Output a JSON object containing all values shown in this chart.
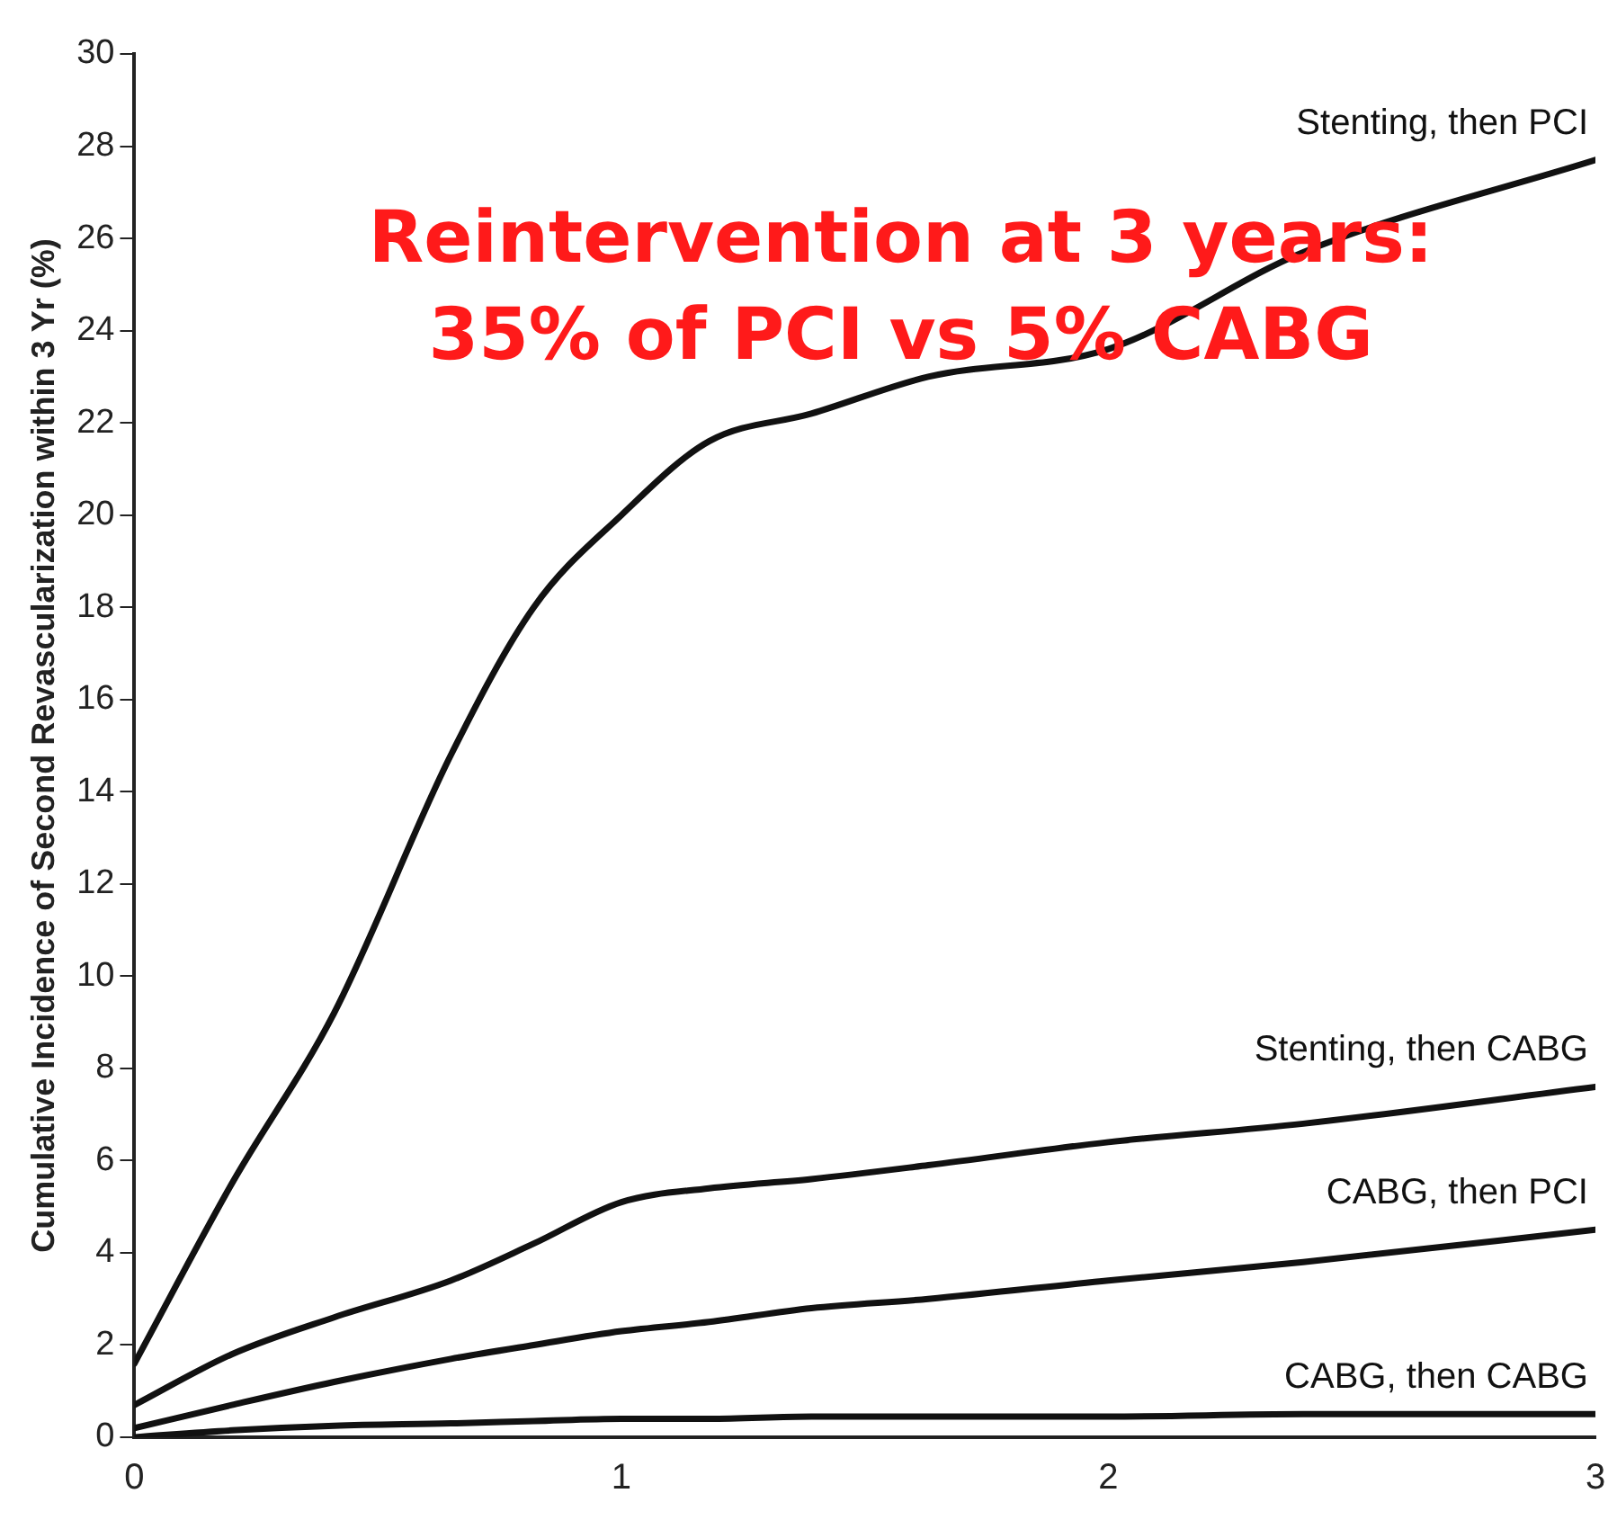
{
  "chart_data": {
    "type": "line",
    "ylabel": "Cumulative Incidence of Second Revascularization within 3 Yr (%)",
    "annotations": [
      "Reintervention at 3 years:",
      "35% of PCI vs 5% CABG"
    ],
    "x": [
      0,
      0.2,
      0.41,
      0.65,
      0.82,
      1,
      1.18,
      1.39,
      1.63,
      2,
      2.4,
      3
    ],
    "xlim": [
      0,
      3
    ],
    "xticks": [
      0,
      1,
      2,
      3
    ],
    "ylim": [
      0,
      30
    ],
    "yticks": [
      0,
      2,
      4,
      6,
      8,
      10,
      12,
      14,
      16,
      18,
      20,
      22,
      24,
      26,
      28,
      30
    ],
    "marker": "none",
    "line_style": "solid",
    "series": [
      {
        "name": "Stenting, then PCI",
        "color": "#111111",
        "values": [
          1.6,
          5.5,
          9.2,
          14.8,
          18,
          20,
          21.6,
          22.2,
          23,
          23.6,
          25.7,
          27.7
        ]
      },
      {
        "name": "Stenting, then CABG",
        "color": "#111111",
        "values": [
          0.7,
          1.8,
          2.6,
          3.4,
          4.2,
          5.1,
          5.4,
          5.6,
          5.9,
          6.4,
          6.8,
          7.6
        ]
      },
      {
        "name": "CABG, then PCI",
        "color": "#111111",
        "values": [
          0.2,
          0.7,
          1.2,
          1.7,
          2,
          2.3,
          2.5,
          2.8,
          3,
          3.4,
          3.8,
          4.5
        ]
      },
      {
        "name": "CABG, then CABG",
        "color": "#111111",
        "values": [
          0,
          0.15,
          0.25,
          0.3,
          0.35,
          0.4,
          0.4,
          0.45,
          0.45,
          0.45,
          0.5,
          0.5
        ]
      }
    ]
  }
}
